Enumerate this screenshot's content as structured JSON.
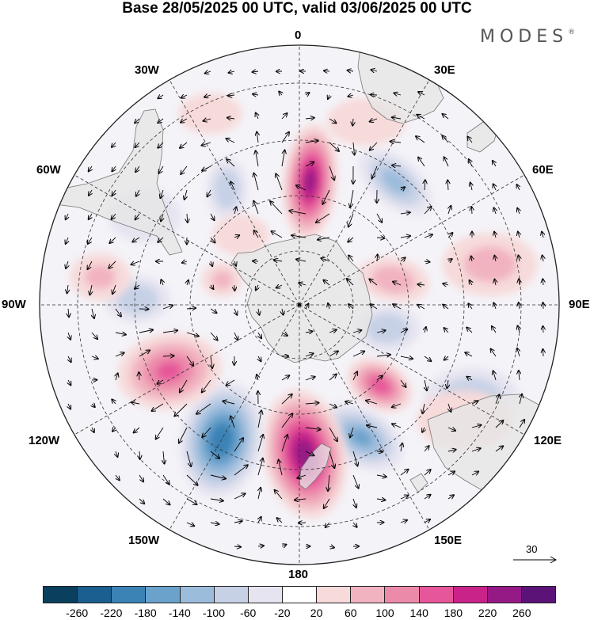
{
  "title": "Base 28/05/2025 00 UTC, valid 03/06/2025 00 UTC",
  "brand": "MODES",
  "brand_mark": "®",
  "longitude_labels": {
    "top": "0",
    "bottom": "180",
    "left": "90W",
    "right": "90E",
    "lon30w": "30W",
    "lon30e": "30E",
    "lon60w": "60W",
    "lon60e": "60E",
    "lon120w": "120W",
    "lon120e": "120E",
    "lon150w": "150W",
    "lon150e": "150E"
  },
  "reference_vector": "30",
  "colorbar": {
    "colors": [
      "#0b3f5e",
      "#1a5f8f",
      "#3b82b5",
      "#6aa2cc",
      "#9cbcdc",
      "#c6d1e6",
      "#e6e4f0",
      "#ffffff",
      "#f7dada",
      "#f1b3c0",
      "#ec8aaa",
      "#e6569a",
      "#c9238a",
      "#951a86",
      "#5c1378"
    ],
    "labels": [
      "-260",
      "-220",
      "-180",
      "-140",
      "-100",
      "-60",
      "-20",
      "20",
      "60",
      "100",
      "140",
      "180",
      "220",
      "260"
    ]
  },
  "anomalies": [
    {
      "lat": -52,
      "lon": 5,
      "rx": 34,
      "ry": 74,
      "rot": 5,
      "value": 230
    },
    {
      "lat": -42,
      "lon": 38,
      "rx": 55,
      "ry": 30,
      "rot": 40,
      "value": -110
    },
    {
      "lat": -48,
      "lon": -32,
      "rx": 26,
      "ry": 40,
      "rot": 0,
      "value": -90
    },
    {
      "lat": -60,
      "lon": 75,
      "rx": 46,
      "ry": 28,
      "rot": 10,
      "value": 80
    },
    {
      "lat": -30,
      "lon": 78,
      "rx": 60,
      "ry": 40,
      "rot": 0,
      "value": 70
    },
    {
      "lat": -62,
      "lon": 105,
      "rx": 42,
      "ry": 30,
      "rot": 0,
      "value": -90
    },
    {
      "lat": -55,
      "lon": 135,
      "rx": 44,
      "ry": 30,
      "rot": 30,
      "value": 160
    },
    {
      "lat": -30,
      "lon": 118,
      "rx": 60,
      "ry": 36,
      "rot": 0,
      "value": -90
    },
    {
      "lat": -45,
      "lon": 155,
      "rx": 58,
      "ry": 36,
      "rot": 30,
      "value": -140
    },
    {
      "lat": -44,
      "lon": 178,
      "rx": 52,
      "ry": 82,
      "rot": -10,
      "value": 240
    },
    {
      "lat": -42,
      "lon": -150,
      "rx": 52,
      "ry": 74,
      "rot": 10,
      "value": -210
    },
    {
      "lat": -45,
      "lon": -117,
      "rx": 66,
      "ry": 48,
      "rot": -10,
      "value": 140
    },
    {
      "lat": -40,
      "lon": -88,
      "rx": 42,
      "ry": 30,
      "rot": 0,
      "value": -90
    },
    {
      "lat": -65,
      "lon": -72,
      "rx": 26,
      "ry": 22,
      "rot": 0,
      "value": 60
    },
    {
      "lat": -28,
      "lon": -82,
      "rx": 38,
      "ry": 30,
      "rot": 0,
      "value": 60
    },
    {
      "lat": -30,
      "lon": 20,
      "rx": 50,
      "ry": 30,
      "rot": 0,
      "value": 40
    },
    {
      "lat": -28,
      "lon": 125,
      "rx": 60,
      "ry": 38,
      "rot": 0,
      "value": 50
    },
    {
      "lat": -62,
      "lon": -40,
      "rx": 36,
      "ry": 26,
      "rot": 0,
      "value": 40
    },
    {
      "lat": -35,
      "lon": -60,
      "rx": 46,
      "ry": 34,
      "rot": 0,
      "value": -40
    },
    {
      "lat": -25,
      "lon": -25,
      "rx": 40,
      "ry": 26,
      "rot": 0,
      "value": 30
    }
  ]
}
